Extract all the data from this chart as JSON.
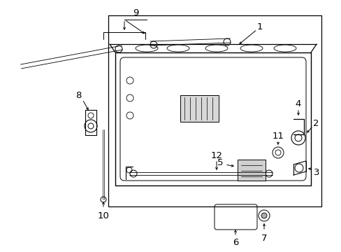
{
  "background_color": "#ffffff",
  "line_color": "#000000",
  "fig_width": 4.89,
  "fig_height": 3.6,
  "dpi": 100,
  "gray": "#888888",
  "light_gray": "#cccccc"
}
